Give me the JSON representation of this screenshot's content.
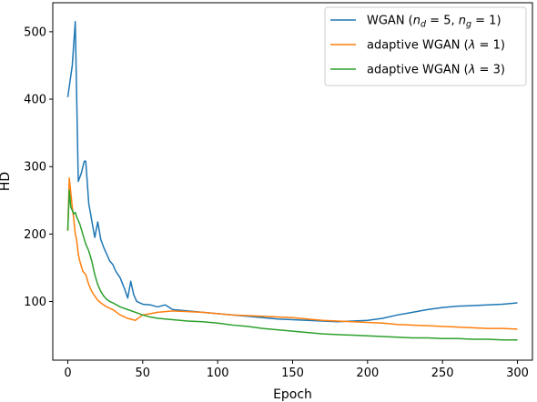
{
  "chart_data": {
    "type": "line",
    "title": "",
    "xlabel": "Epoch",
    "ylabel": "HD",
    "xlim": [
      -10,
      310
    ],
    "ylim": [
      13,
      543
    ],
    "xticks": [
      0,
      50,
      100,
      150,
      200,
      250,
      300
    ],
    "xtick_labels": [
      "0",
      "50",
      "100",
      "150",
      "200",
      "250",
      "300"
    ],
    "yticks": [
      100,
      200,
      300,
      400,
      500
    ],
    "ytick_labels": [
      "100",
      "200",
      "300",
      "400",
      "500"
    ],
    "grid": false,
    "legend_position": "upper right",
    "series": [
      {
        "name": "WGAN (n_d = 5, n_g = 1)",
        "legend_parts": [
          "WGAN (",
          "n",
          "d",
          " = 5, ",
          "n",
          "g",
          " = 1)"
        ],
        "color": "#1f77b4",
        "x": [
          0,
          3,
          5,
          7,
          9,
          11,
          12,
          14,
          16,
          18,
          20,
          22,
          24,
          26,
          28,
          30,
          32,
          35,
          38,
          40,
          42,
          44,
          46,
          50,
          55,
          60,
          65,
          70,
          80,
          90,
          100,
          110,
          120,
          130,
          140,
          150,
          160,
          170,
          180,
          190,
          200,
          210,
          220,
          230,
          240,
          250,
          260,
          270,
          280,
          290,
          300
        ],
        "y": [
          403,
          450,
          515,
          278,
          290,
          308,
          308,
          245,
          220,
          195,
          218,
          192,
          180,
          170,
          160,
          155,
          145,
          135,
          118,
          105,
          130,
          110,
          100,
          96,
          95,
          92,
          95,
          88,
          86,
          84,
          82,
          80,
          78,
          76,
          74,
          73,
          72,
          71,
          70,
          71,
          72,
          75,
          80,
          84,
          88,
          91,
          93,
          94,
          95,
          96,
          98
        ]
      },
      {
        "name": "adaptive WGAN (λ = 1)",
        "legend_parts": [
          "adaptive WGAN (",
          "λ",
          " = 1)"
        ],
        "color": "#ff7f0e",
        "x": [
          0,
          1,
          2,
          3,
          4,
          5,
          6,
          7,
          8,
          10,
          12,
          14,
          16,
          18,
          20,
          22,
          24,
          26,
          28,
          30,
          35,
          40,
          45,
          50,
          55,
          60,
          70,
          80,
          90,
          100,
          110,
          120,
          130,
          140,
          150,
          160,
          170,
          180,
          190,
          200,
          210,
          220,
          230,
          240,
          250,
          260,
          270,
          280,
          290,
          300
        ],
        "y": [
          205,
          283,
          262,
          240,
          222,
          200,
          190,
          170,
          160,
          145,
          140,
          125,
          115,
          108,
          102,
          98,
          95,
          92,
          90,
          88,
          80,
          75,
          72,
          80,
          82,
          84,
          86,
          85,
          84,
          82,
          80,
          79,
          78,
          77,
          76,
          74,
          72,
          71,
          70,
          69,
          68,
          66,
          65,
          64,
          63,
          62,
          61,
          60,
          60,
          59
        ]
      },
      {
        "name": "adaptive WGAN (λ = 3)",
        "legend_parts": [
          "adaptive WGAN (",
          "λ",
          " = 3)"
        ],
        "color": "#2ca02c",
        "x": [
          0,
          1,
          2,
          3,
          4,
          5,
          6,
          8,
          10,
          12,
          14,
          16,
          18,
          20,
          22,
          24,
          26,
          28,
          30,
          35,
          40,
          45,
          50,
          55,
          60,
          70,
          80,
          90,
          100,
          110,
          120,
          130,
          140,
          150,
          160,
          170,
          180,
          190,
          200,
          210,
          220,
          230,
          240,
          250,
          260,
          270,
          280,
          290,
          300
        ],
        "y": [
          205,
          265,
          240,
          235,
          230,
          232,
          225,
          215,
          200,
          185,
          175,
          160,
          140,
          125,
          115,
          108,
          103,
          100,
          98,
          92,
          88,
          84,
          80,
          77,
          75,
          73,
          71,
          70,
          68,
          65,
          63,
          60,
          58,
          56,
          54,
          52,
          51,
          50,
          49,
          48,
          47,
          46,
          46,
          45,
          45,
          44,
          44,
          43,
          43
        ]
      }
    ]
  }
}
